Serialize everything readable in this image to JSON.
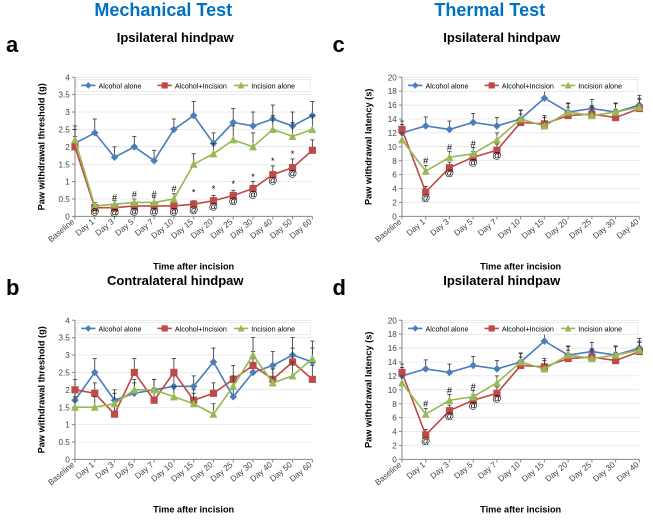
{
  "headers": {
    "left": "Mechanical Test",
    "right": "Thermal Test"
  },
  "colors": {
    "alcohol_alone": "#4a7ebb",
    "alcohol_incision": "#be4b48",
    "incision_alone": "#98b954",
    "axis": "#888888",
    "grid": "#d9d9d9",
    "tick_text": "#444444",
    "err": "#333333"
  },
  "legend_labels": [
    "Alcohol alone",
    "Alcohol+Incision",
    "Incision alone"
  ],
  "markers": [
    "diamond",
    "square",
    "triangle"
  ],
  "panels": {
    "a": {
      "letter": "a",
      "subtitle": "Ipsilateral hindpaw",
      "xlabel": "Time after incision",
      "ylabel": "Paw withdrawal threshold (g)",
      "categories": [
        "Baseline",
        "Day 1",
        "Day 3",
        "Day 5",
        "Day 7",
        "Day 10",
        "Day 15",
        "Day 20",
        "Day 25",
        "Day 30",
        "Day 40",
        "Day 50",
        "Day 60"
      ],
      "ylim": [
        0,
        4
      ],
      "ytick": 0.5,
      "series": [
        {
          "name": "alcohol_alone",
          "y": [
            2.1,
            2.4,
            1.7,
            2.0,
            1.6,
            2.5,
            2.9,
            2.1,
            2.7,
            2.6,
            2.8,
            2.6,
            2.9
          ],
          "err": [
            0.4,
            0.4,
            0.3,
            0.3,
            0.3,
            0.3,
            0.4,
            0.3,
            0.4,
            0.4,
            0.4,
            0.4,
            0.4
          ]
        },
        {
          "name": "alcohol_incision",
          "y": [
            2.0,
            0.25,
            0.25,
            0.3,
            0.3,
            0.3,
            0.35,
            0.45,
            0.6,
            0.8,
            1.2,
            1.4,
            1.9
          ],
          "err": [
            0.3,
            0.1,
            0.1,
            0.1,
            0.1,
            0.1,
            0.1,
            0.15,
            0.15,
            0.2,
            0.25,
            0.25,
            0.3
          ]
        },
        {
          "name": "incision_alone",
          "y": [
            2.2,
            0.3,
            0.35,
            0.4,
            0.4,
            0.5,
            1.5,
            1.8,
            2.2,
            2.0,
            2.5,
            2.3,
            2.5
          ],
          "err": [
            0.4,
            0.1,
            0.1,
            0.1,
            0.15,
            0.15,
            0.3,
            0.3,
            0.4,
            0.4,
            0.4,
            0.4,
            0.4
          ]
        }
      ],
      "annotations": [
        {
          "cat": 1,
          "y": 0.05,
          "text": "@"
        },
        {
          "cat": 2,
          "y": 0.45,
          "text": "#"
        },
        {
          "cat": 2,
          "y": 0.02,
          "text": "@"
        },
        {
          "cat": 3,
          "y": 0.55,
          "text": "#"
        },
        {
          "cat": 3,
          "y": 0.05,
          "text": "@"
        },
        {
          "cat": 4,
          "y": 0.55,
          "text": "#"
        },
        {
          "cat": 4,
          "y": 0.05,
          "text": "@"
        },
        {
          "cat": 5,
          "y": 0.7,
          "text": "#"
        },
        {
          "cat": 5,
          "y": 0.05,
          "text": "@"
        },
        {
          "cat": 6,
          "y": 0.6,
          "text": "*"
        },
        {
          "cat": 6,
          "y": 0.1,
          "text": "@"
        },
        {
          "cat": 7,
          "y": 0.7,
          "text": "*"
        },
        {
          "cat": 7,
          "y": 0.2,
          "text": "@"
        },
        {
          "cat": 8,
          "y": 0.85,
          "text": "*"
        },
        {
          "cat": 8,
          "y": 0.35,
          "text": "@"
        },
        {
          "cat": 9,
          "y": 1.05,
          "text": "*"
        },
        {
          "cat": 9,
          "y": 0.55,
          "text": "@"
        },
        {
          "cat": 10,
          "y": 1.5,
          "text": "*"
        },
        {
          "cat": 10,
          "y": 0.95,
          "text": "@"
        },
        {
          "cat": 11,
          "y": 1.7,
          "text": "*"
        },
        {
          "cat": 11,
          "y": 1.15,
          "text": "@"
        }
      ]
    },
    "b": {
      "letter": "b",
      "subtitle": "Contralateral hindpaw",
      "xlabel": "Time after incision",
      "ylabel": "Paw withdrawal threshold (g)",
      "categories": [
        "Baseline",
        "Day 1",
        "Day 3",
        "Day 5",
        "Day 7",
        "Day 10",
        "Day 15",
        "Day 20",
        "Day 25",
        "Day 30",
        "Day 40",
        "Day 50",
        "Day 60"
      ],
      "ylim": [
        0,
        4
      ],
      "ytick": 0.5,
      "series": [
        {
          "name": "alcohol_alone",
          "y": [
            1.7,
            2.5,
            1.7,
            1.9,
            2.0,
            2.1,
            2.1,
            2.8,
            1.8,
            2.5,
            2.7,
            3.0,
            2.8
          ],
          "err": [
            0.3,
            0.4,
            0.3,
            0.3,
            0.3,
            0.3,
            0.3,
            0.4,
            0.3,
            0.4,
            0.4,
            0.5,
            0.4
          ]
        },
        {
          "name": "alcohol_incision",
          "y": [
            2.0,
            1.9,
            1.3,
            2.5,
            1.7,
            2.5,
            1.7,
            1.9,
            2.3,
            2.7,
            2.3,
            2.8,
            2.3
          ],
          "err": [
            0.3,
            0.3,
            0.3,
            0.4,
            0.3,
            0.4,
            0.3,
            0.3,
            0.4,
            0.4,
            0.3,
            0.4,
            0.4
          ]
        },
        {
          "name": "incision_alone",
          "y": [
            1.5,
            1.5,
            1.6,
            2.0,
            2.0,
            1.8,
            1.6,
            1.3,
            2.1,
            3.0,
            2.2,
            2.4,
            2.9
          ],
          "err": [
            0.3,
            0.3,
            0.3,
            0.3,
            0.3,
            0.3,
            0.3,
            0.3,
            0.3,
            0.5,
            0.4,
            0.4,
            0.5
          ]
        }
      ],
      "annotations": []
    },
    "c": {
      "letter": "c",
      "subtitle": "Ipsilateral hindpaw",
      "xlabel": "Time after incision",
      "ylabel": "Paw withdrawal latency (s)",
      "categories": [
        "Baseline",
        "Day 1",
        "Day 3",
        "Day 5",
        "Day 7",
        "Day 10",
        "Day 15",
        "Day 20",
        "Day 25",
        "Day 30",
        "Day 40"
      ],
      "ylim": [
        0,
        20
      ],
      "ytick": 2,
      "series": [
        {
          "name": "alcohol_alone",
          "y": [
            12,
            13,
            12.5,
            13.5,
            13,
            14,
            17,
            15,
            15.5,
            15,
            16
          ],
          "err": [
            1.2,
            1.3,
            1.2,
            1.3,
            1.2,
            1.3,
            1.5,
            1.3,
            1.3,
            1.3,
            1.4
          ]
        },
        {
          "name": "alcohol_incision",
          "y": [
            12.5,
            3.5,
            7,
            8.5,
            9.5,
            13.5,
            13.3,
            14.5,
            14.7,
            14.2,
            15.5
          ],
          "err": [
            1.2,
            0.8,
            0.8,
            0.8,
            0.9,
            1.2,
            1.2,
            1.2,
            1.2,
            1.2,
            1.3
          ]
        },
        {
          "name": "incision_alone",
          "y": [
            11,
            6.5,
            8.5,
            9,
            11,
            14,
            13,
            15,
            14.5,
            15,
            15.7
          ],
          "err": [
            1,
            0.8,
            0.8,
            0.9,
            1,
            1.2,
            1.2,
            1.2,
            1.2,
            1.2,
            1.3
          ]
        }
      ],
      "annotations": [
        {
          "cat": 1,
          "y": 7.5,
          "text": "#"
        },
        {
          "cat": 1,
          "y": 2.2,
          "text": "@"
        },
        {
          "cat": 2,
          "y": 9.5,
          "text": "#"
        },
        {
          "cat": 2,
          "y": 5.8,
          "text": "@"
        },
        {
          "cat": 3,
          "y": 10,
          "text": "#"
        },
        {
          "cat": 3,
          "y": 7.3,
          "text": "@"
        },
        {
          "cat": 4,
          "y": 8.3,
          "text": "@"
        }
      ]
    },
    "d": {
      "letter": "d",
      "subtitle": "Ipsilateral hindpaw",
      "xlabel": "Time after incision",
      "ylabel": "Paw withdrawal latency (s)",
      "categories": [
        "Baseline",
        "Day 1",
        "Day 3",
        "Day 5",
        "Day 7",
        "Day 10",
        "Day 15",
        "Day 20",
        "Day 25",
        "Day 30",
        "Day 40"
      ],
      "ylim": [
        0,
        20
      ],
      "ytick": 2,
      "series": [
        {
          "name": "alcohol_alone",
          "y": [
            12,
            13,
            12.5,
            13.5,
            13,
            14,
            17,
            15,
            15.5,
            15,
            16
          ],
          "err": [
            1.2,
            1.3,
            1.2,
            1.3,
            1.2,
            1.3,
            1.5,
            1.3,
            1.3,
            1.3,
            1.4
          ]
        },
        {
          "name": "alcohol_incision",
          "y": [
            12.5,
            3.5,
            7,
            8.5,
            9.5,
            13.5,
            13.3,
            14.5,
            14.7,
            14.2,
            15.5
          ],
          "err": [
            1.2,
            0.8,
            0.8,
            0.8,
            0.9,
            1.2,
            1.2,
            1.2,
            1.2,
            1.2,
            1.3
          ]
        },
        {
          "name": "incision_alone",
          "y": [
            11,
            6.5,
            8.5,
            9,
            11,
            14,
            13,
            15,
            14.5,
            15,
            15.7
          ],
          "err": [
            1,
            0.8,
            0.8,
            0.9,
            1,
            1.2,
            1.2,
            1.2,
            1.2,
            1.2,
            1.3
          ]
        }
      ],
      "annotations": [
        {
          "cat": 1,
          "y": 7.5,
          "text": "#"
        },
        {
          "cat": 1,
          "y": 2.2,
          "text": "@"
        },
        {
          "cat": 2,
          "y": 9.5,
          "text": "#"
        },
        {
          "cat": 2,
          "y": 5.8,
          "text": "@"
        },
        {
          "cat": 3,
          "y": 10,
          "text": "#"
        },
        {
          "cat": 3,
          "y": 7.3,
          "text": "@"
        },
        {
          "cat": 4,
          "y": 8.3,
          "text": "@"
        }
      ]
    }
  }
}
